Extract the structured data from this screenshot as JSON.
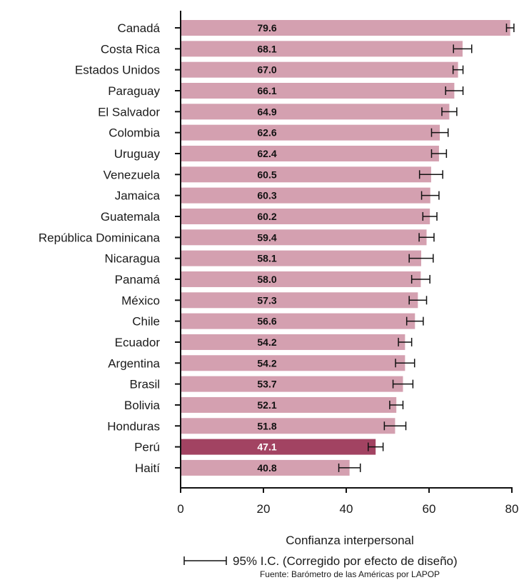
{
  "chart_data": {
    "type": "bar",
    "orientation": "horizontal",
    "categories": [
      "Canadá",
      "Costa Rica",
      "Estados Unidos",
      "Paraguay",
      "El Salvador",
      "Colombia",
      "Uruguay",
      "Venezuela",
      "Jamaica",
      "Guatemala",
      "República Dominicana",
      "Nicaragua",
      "Panamá",
      "México",
      "Chile",
      "Ecuador",
      "Argentina",
      "Brasil",
      "Bolivia",
      "Honduras",
      "Perú",
      "Haití"
    ],
    "values": [
      79.6,
      68.1,
      67.0,
      66.1,
      64.9,
      62.6,
      62.4,
      60.5,
      60.3,
      60.2,
      59.4,
      58.1,
      58.0,
      57.3,
      56.6,
      54.2,
      54.2,
      53.7,
      52.1,
      51.8,
      47.1,
      40.8
    ],
    "value_labels": [
      "79.6",
      "68.1",
      "67.0",
      "66.1",
      "64.9",
      "62.6",
      "62.4",
      "60.5",
      "60.3",
      "60.2",
      "59.4",
      "58.1",
      "58.0",
      "57.3",
      "56.6",
      "54.2",
      "54.2",
      "53.7",
      "52.1",
      "51.8",
      "47.1",
      "40.8"
    ],
    "ci_low": [
      78.7,
      65.9,
      65.8,
      64.0,
      63.1,
      60.6,
      60.6,
      57.7,
      58.2,
      58.5,
      57.6,
      55.2,
      55.8,
      55.2,
      54.6,
      52.6,
      51.9,
      51.3,
      50.5,
      49.2,
      45.3,
      38.2
    ],
    "ci_high": [
      80.5,
      70.3,
      68.2,
      68.2,
      66.7,
      64.6,
      64.2,
      63.3,
      62.4,
      61.9,
      61.2,
      61.0,
      60.2,
      59.4,
      58.6,
      55.8,
      56.5,
      56.1,
      53.7,
      54.4,
      48.9,
      43.4
    ],
    "highlight": "Perú",
    "xlim": [
      0,
      80
    ],
    "xticks": [
      "0",
      "20",
      "40",
      "60",
      "80"
    ],
    "xlabel": "Confianza interpersonal",
    "legend_text": "95% I.C. (Corregido por efecto de diseño)",
    "source": "Fuente: Barómetro de las Américas por LAPOP",
    "grid": false,
    "colors": {
      "bar": "#d4a0b0",
      "highlight": "#a24362",
      "text": "#1a1a1a",
      "axis": "#111111"
    }
  }
}
